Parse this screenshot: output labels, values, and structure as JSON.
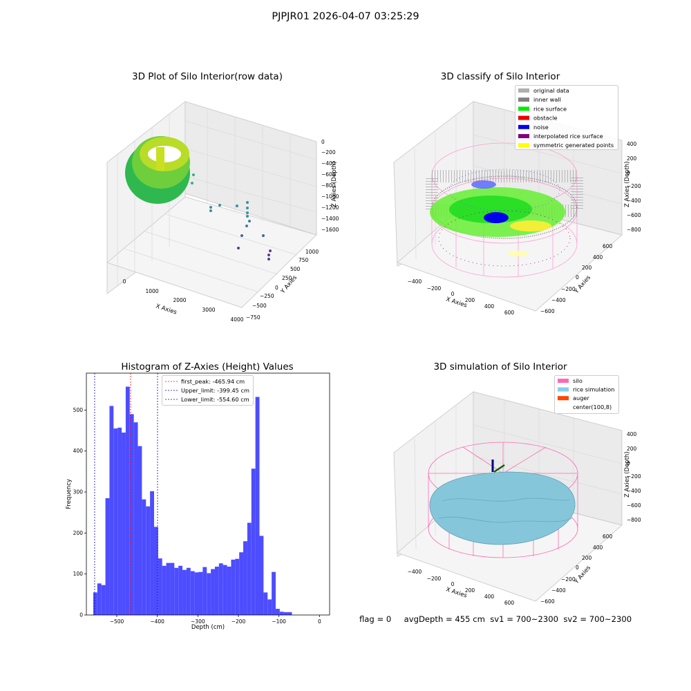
{
  "figure": {
    "suptitle": "PJPJR01 2026-04-07 03:25:29",
    "footer": {
      "flag": "flag = 0",
      "avg_depth": "avgDepth = 455 cm",
      "sv1": "sv1 = 700~2300",
      "sv2": "sv2 = 700~2300"
    }
  },
  "chart_data": [
    {
      "type": "scatter3d",
      "title": "3D Plot of Silo Interior(row data)",
      "xlabel": "X Axies",
      "ylabel": "Y Axies",
      "zlabel": "Z Axies (Depth)",
      "x_ticks": [
        "0",
        "1000",
        "2000",
        "3000",
        "4000"
      ],
      "y_ticks": [
        "−750",
        "−500",
        "−250",
        "0",
        "250",
        "500",
        "750",
        "1000"
      ],
      "z_ticks": [
        "−1600",
        "−1400",
        "−1200",
        "−1000",
        "−800",
        "−600",
        "−400",
        "−200",
        "0"
      ],
      "colormap": "viridis"
    },
    {
      "type": "scatter3d",
      "title": "3D classify of Silo Interior",
      "xlabel": "X Axies",
      "ylabel": "Y Axies",
      "zlabel": "Z Axies (Depth)",
      "x_ticks": [
        "−400",
        "−200",
        "0",
        "200",
        "400",
        "600"
      ],
      "y_ticks": [
        "−600",
        "−400",
        "−200",
        "0",
        "200",
        "400",
        "600"
      ],
      "z_ticks": [
        "−800",
        "−600",
        "−400",
        "−200",
        "0",
        "200",
        "400"
      ],
      "legend_position": "top-right",
      "legend": [
        {
          "label": "original data",
          "color": "#b0b0b0"
        },
        {
          "label": "inner wall",
          "color": "#808080"
        },
        {
          "label": "rice surface",
          "color": "#00ee00"
        },
        {
          "label": "obstacle",
          "color": "#ee0000"
        },
        {
          "label": "noise",
          "color": "#0000ee"
        },
        {
          "label": "interpolated rice surface",
          "color": "#800080"
        },
        {
          "label": "symmetric generated points",
          "color": "#ffff00"
        }
      ]
    },
    {
      "type": "bar",
      "title": "Histogram of Z-Axies (Height) Values",
      "xlabel": "Depth (cm)",
      "ylabel": "Frequency",
      "xlim": [
        -575,
        25
      ],
      "ylim": [
        0,
        590
      ],
      "x_ticks": [
        -500,
        -400,
        -300,
        -200,
        -100,
        0
      ],
      "y_ticks": [
        0,
        100,
        200,
        300,
        400,
        500
      ],
      "bar_color": "#4d4dff",
      "bin_start": -558,
      "bin_width": 10,
      "values": [
        55,
        77,
        73,
        285,
        510,
        455,
        457,
        445,
        557,
        490,
        470,
        412,
        282,
        265,
        302,
        215,
        138,
        120,
        127,
        127,
        115,
        120,
        110,
        115,
        107,
        104,
        105,
        117,
        102,
        112,
        118,
        126,
        122,
        118,
        135,
        137,
        153,
        180,
        225,
        357,
        532,
        193,
        55,
        38,
        105,
        15,
        8,
        7,
        7
      ],
      "vlines": [
        {
          "label": "first_peak: -465.94 cm",
          "x": -465.94,
          "color": "#ff0000"
        },
        {
          "label": "Upper_limit: -399.45 cm",
          "x": -399.45,
          "color": "#0000cc"
        },
        {
          "label": "Lower_limit: -554.60 cm",
          "x": -554.6,
          "color": "#0000cc"
        }
      ],
      "legend_position": "top"
    },
    {
      "type": "surface3d",
      "title": "3D simulation of Silo Interior",
      "xlabel": "X Axies",
      "ylabel": "Y Axies",
      "zlabel": "Z Axies (Depth)",
      "x_ticks": [
        "−400",
        "−200",
        "0",
        "200",
        "400",
        "600"
      ],
      "y_ticks": [
        "−600",
        "−400",
        "−200",
        "0",
        "200",
        "400",
        "600"
      ],
      "z_ticks": [
        "−800",
        "−600",
        "−400",
        "−200",
        "0",
        "200",
        "400"
      ],
      "legend_position": "top-right",
      "legend": [
        {
          "label": "silo",
          "color": "#ff69b4"
        },
        {
          "label": "rice simulation",
          "color": "#87ceeb"
        },
        {
          "label": "auger",
          "color": "#ff4500"
        },
        {
          "label": "center(100,8)",
          "color": "#ffffff"
        }
      ]
    }
  ]
}
